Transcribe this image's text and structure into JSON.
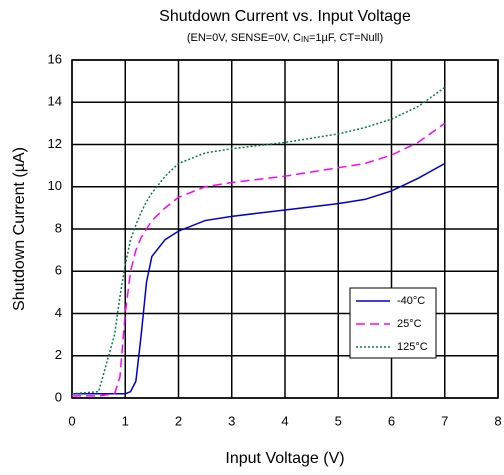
{
  "chart_data": {
    "type": "line",
    "title": "Shutdown Current vs. Input Voltage",
    "subtitle": [
      "(EN=0V, SENSE=0V, C",
      "IN",
      "=1µF, CT=Null)"
    ],
    "x_label": "Input Voltage (V)",
    "y_label": "Shutdown Current (µA)",
    "x": [
      0,
      0.5,
      0.8,
      0.9,
      1.0,
      1.1,
      1.2,
      1.3,
      1.4,
      1.5,
      1.75,
      2,
      2.5,
      3,
      4,
      5,
      5.5,
      6,
      6.5,
      7
    ],
    "series": [
      {
        "name": "-40°C",
        "color": "#0000cc",
        "dash": "solid",
        "values": [
          0.2,
          0.2,
          0.2,
          0.2,
          0.2,
          0.3,
          0.8,
          3.0,
          5.5,
          6.7,
          7.5,
          7.9,
          8.4,
          8.6,
          8.9,
          9.2,
          9.4,
          9.8,
          10.4,
          11.1
        ]
      },
      {
        "name": "25°C",
        "color": "#ff00ff",
        "dash": "dashed",
        "values": [
          0.1,
          0.1,
          0.2,
          1.0,
          4.0,
          6.0,
          7.0,
          7.6,
          8.0,
          8.4,
          9.0,
          9.5,
          10.0,
          10.2,
          10.5,
          10.9,
          11.1,
          11.5,
          12.1,
          13.0
        ]
      },
      {
        "name": "125°C",
        "color": "#008040",
        "dash": "dotted",
        "values": [
          0.2,
          0.3,
          3.0,
          4.8,
          6.3,
          7.5,
          8.2,
          8.8,
          9.3,
          9.7,
          10.5,
          11.1,
          11.6,
          11.8,
          12.1,
          12.5,
          12.8,
          13.2,
          13.8,
          14.7
        ]
      }
    ],
    "xlim": [
      0,
      8
    ],
    "xticks": [
      0,
      1,
      2,
      3,
      4,
      5,
      6,
      7,
      8
    ],
    "ylim": [
      0,
      16
    ],
    "yticks": [
      0,
      2,
      4,
      6,
      8,
      10,
      12,
      14,
      16
    ],
    "grid": true,
    "legend": "lower right"
  }
}
